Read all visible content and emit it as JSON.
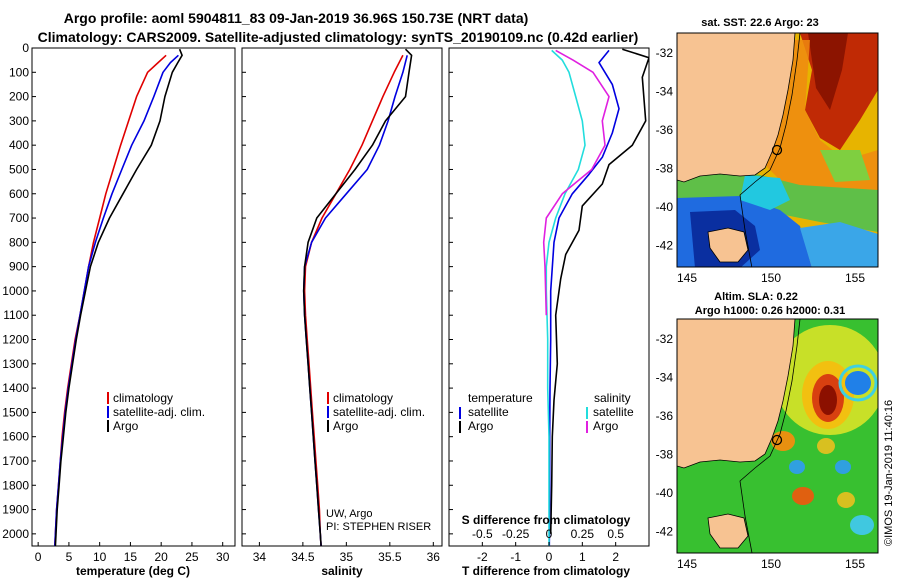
{
  "header": {
    "title_line1": "Argo profile: aoml 5904811_83 09-Jan-2019 36.96S 150.73E (NRT data)",
    "title_line2": "Climatology: CARS2009. Satellite-adjusted climatology: synTS_20190109.nc (0.42d earlier)"
  },
  "colors": {
    "climatology": "#e00000",
    "satellite": "#0000e0",
    "argo": "#000000",
    "sat_salinity": "#22dddd",
    "argo_salinity": "#e020e0"
  },
  "chart_data": [
    {
      "type": "line",
      "id": "temperature",
      "xlabel": "temperature (deg C)",
      "ylabel": "",
      "xlim": [
        -1,
        32
      ],
      "ylim": [
        2050,
        0
      ],
      "y_inverted": true,
      "xticks": [
        0,
        5,
        10,
        15,
        20,
        25,
        30
      ],
      "yticks": [
        0,
        100,
        200,
        300,
        400,
        500,
        600,
        700,
        800,
        900,
        1000,
        1100,
        1200,
        1300,
        1400,
        1500,
        1600,
        1700,
        1800,
        1900,
        2000
      ],
      "legend_position": "lower-center",
      "legend": [
        "climatology",
        "satellite-adj. clim.",
        "Argo"
      ],
      "series": [
        {
          "name": "climatology",
          "color": "#e00000",
          "points": [
            [
              20.8,
              30
            ],
            [
              19.5,
              60
            ],
            [
              17.8,
              100
            ],
            [
              16.0,
              200
            ],
            [
              14.7,
              300
            ],
            [
              13.4,
              400
            ],
            [
              12.2,
              500
            ],
            [
              11.0,
              600
            ],
            [
              10.0,
              700
            ],
            [
              9.0,
              800
            ],
            [
              8.2,
              900
            ],
            [
              7.5,
              1000
            ],
            [
              6.8,
              1100
            ],
            [
              6.0,
              1200
            ],
            [
              5.4,
              1300
            ],
            [
              4.8,
              1400
            ],
            [
              4.3,
              1500
            ],
            [
              3.9,
              1600
            ],
            [
              3.6,
              1700
            ],
            [
              3.3,
              1800
            ],
            [
              3.0,
              1900
            ],
            [
              2.8,
              2000
            ],
            [
              2.7,
              2050
            ]
          ]
        },
        {
          "name": "satellite-adj. clim.",
          "color": "#0000e0",
          "points": [
            [
              22.8,
              30
            ],
            [
              21.5,
              60
            ],
            [
              20.3,
              100
            ],
            [
              18.8,
              200
            ],
            [
              17.2,
              300
            ],
            [
              15.2,
              400
            ],
            [
              13.6,
              500
            ],
            [
              12.0,
              600
            ],
            [
              10.6,
              700
            ],
            [
              9.3,
              800
            ],
            [
              8.2,
              900
            ],
            [
              7.5,
              1000
            ],
            [
              6.8,
              1100
            ],
            [
              6.1,
              1200
            ],
            [
              5.5,
              1300
            ],
            [
              4.9,
              1400
            ],
            [
              4.4,
              1500
            ],
            [
              4.0,
              1600
            ],
            [
              3.6,
              1700
            ],
            [
              3.3,
              1800
            ],
            [
              3.0,
              1900
            ],
            [
              2.8,
              2000
            ],
            [
              2.7,
              2050
            ]
          ]
        },
        {
          "name": "Argo",
          "color": "#000000",
          "points": [
            [
              23.0,
              5
            ],
            [
              23.4,
              30
            ],
            [
              22.7,
              60
            ],
            [
              21.8,
              100
            ],
            [
              20.6,
              200
            ],
            [
              19.8,
              300
            ],
            [
              18.4,
              400
            ],
            [
              16.0,
              500
            ],
            [
              13.8,
              600
            ],
            [
              11.6,
              700
            ],
            [
              9.8,
              800
            ],
            [
              8.5,
              900
            ],
            [
              7.7,
              1000
            ],
            [
              6.9,
              1100
            ],
            [
              6.2,
              1200
            ],
            [
              5.6,
              1300
            ],
            [
              5.0,
              1400
            ],
            [
              4.5,
              1500
            ],
            [
              4.1,
              1600
            ],
            [
              3.7,
              1700
            ],
            [
              3.4,
              1800
            ],
            [
              3.1,
              1900
            ],
            [
              2.9,
              2000
            ],
            [
              2.8,
              2050
            ]
          ]
        }
      ]
    },
    {
      "type": "line",
      "id": "salinity",
      "xlabel": "salinity",
      "ylabel": "",
      "xlim": [
        33.8,
        36.1
      ],
      "ylim": [
        2050,
        0
      ],
      "y_inverted": true,
      "xticks": [
        34,
        34.5,
        35,
        35.5,
        36
      ],
      "xtick_labels": [
        "34",
        "34.5",
        "35",
        "35.5",
        "36"
      ],
      "legend_position": "lower-center",
      "legend": [
        "climatology",
        "satellite-adj. clim.",
        "Argo"
      ],
      "annotations": [
        "UW, Argo",
        "PI: STEPHEN RISER"
      ],
      "series": [
        {
          "name": "climatology",
          "color": "#e00000",
          "points": [
            [
              35.65,
              30
            ],
            [
              35.55,
              100
            ],
            [
              35.42,
              200
            ],
            [
              35.3,
              300
            ],
            [
              35.18,
              400
            ],
            [
              35.04,
              500
            ],
            [
              34.88,
              600
            ],
            [
              34.72,
              700
            ],
            [
              34.6,
              800
            ],
            [
              34.53,
              900
            ],
            [
              34.52,
              1000
            ],
            [
              34.53,
              1100
            ],
            [
              34.55,
              1200
            ],
            [
              34.57,
              1300
            ],
            [
              34.59,
              1400
            ],
            [
              34.61,
              1500
            ],
            [
              34.63,
              1600
            ],
            [
              34.65,
              1700
            ],
            [
              34.67,
              1800
            ],
            [
              34.69,
              1900
            ],
            [
              34.7,
              2000
            ],
            [
              34.71,
              2050
            ]
          ]
        },
        {
          "name": "satellite-adj. clim.",
          "color": "#0000e0",
          "points": [
            [
              35.7,
              30
            ],
            [
              35.65,
              100
            ],
            [
              35.56,
              200
            ],
            [
              35.48,
              300
            ],
            [
              35.38,
              400
            ],
            [
              35.24,
              500
            ],
            [
              35.0,
              600
            ],
            [
              34.76,
              700
            ],
            [
              34.6,
              800
            ],
            [
              34.52,
              900
            ],
            [
              34.51,
              1000
            ],
            [
              34.52,
              1100
            ],
            [
              34.54,
              1200
            ],
            [
              34.56,
              1300
            ],
            [
              34.58,
              1400
            ],
            [
              34.6,
              1500
            ],
            [
              34.62,
              1600
            ],
            [
              34.64,
              1700
            ],
            [
              34.66,
              1800
            ],
            [
              34.68,
              1900
            ],
            [
              34.7,
              2000
            ],
            [
              34.71,
              2050
            ]
          ]
        },
        {
          "name": "Argo",
          "color": "#000000",
          "points": [
            [
              35.68,
              5
            ],
            [
              35.75,
              30
            ],
            [
              35.72,
              100
            ],
            [
              35.68,
              200
            ],
            [
              35.45,
              300
            ],
            [
              35.3,
              400
            ],
            [
              35.1,
              500
            ],
            [
              34.88,
              600
            ],
            [
              34.66,
              700
            ],
            [
              34.56,
              800
            ],
            [
              34.52,
              900
            ],
            [
              34.51,
              1000
            ],
            [
              34.52,
              1100
            ],
            [
              34.54,
              1200
            ],
            [
              34.56,
              1300
            ],
            [
              34.58,
              1400
            ],
            [
              34.6,
              1500
            ],
            [
              34.62,
              1600
            ],
            [
              34.64,
              1700
            ],
            [
              34.66,
              1800
            ],
            [
              34.68,
              1900
            ],
            [
              34.7,
              2000
            ],
            [
              34.71,
              2050
            ]
          ]
        }
      ]
    },
    {
      "type": "line",
      "id": "differences",
      "xlabel": "T difference from climatology",
      "xlabel_top": "S difference from climatology",
      "ylabel": "",
      "xlim": [
        -3,
        3
      ],
      "ylim": [
        2050,
        0
      ],
      "y_inverted": true,
      "xticks": [
        -2,
        -1,
        0,
        1,
        2
      ],
      "s_xticks": [
        -0.5,
        -0.25,
        0,
        0.25,
        0.5
      ],
      "s_xtick_labels": [
        "-0.5",
        "-0.25",
        "0",
        "0.25",
        "0.5"
      ],
      "legend_position": "lower-center",
      "legend_temperature_title": "temperature",
      "legend_salinity_title": "salinity",
      "legend_temperature": [
        "satellite",
        "Argo"
      ],
      "legend_salinity": [
        "satellite",
        "Argo"
      ],
      "series": [
        {
          "name": "satellite",
          "quantity": "temperature",
          "color": "#0000e0",
          "points": [
            [
              1.8,
              10
            ],
            [
              1.5,
              60
            ],
            [
              1.9,
              150
            ],
            [
              2.1,
              250
            ],
            [
              1.9,
              350
            ],
            [
              1.6,
              450
            ],
            [
              1.2,
              520
            ],
            [
              0.7,
              600
            ],
            [
              0.3,
              700
            ],
            [
              0.15,
              800
            ],
            [
              0.05,
              1000
            ],
            [
              0.05,
              1200
            ],
            [
              0.03,
              1400
            ],
            [
              0.02,
              1600
            ],
            [
              0.02,
              1800
            ],
            [
              0.01,
              2050
            ]
          ]
        },
        {
          "name": "Argo",
          "quantity": "temperature",
          "color": "#000000",
          "points": [
            [
              2.2,
              5
            ],
            [
              3.0,
              40
            ],
            [
              2.8,
              120
            ],
            [
              2.9,
              300
            ],
            [
              2.5,
              400
            ],
            [
              1.8,
              480
            ],
            [
              1.6,
              560
            ],
            [
              1.0,
              650
            ],
            [
              0.9,
              750
            ],
            [
              0.5,
              850
            ],
            [
              0.35,
              950
            ],
            [
              0.2,
              1100
            ],
            [
              0.25,
              1300
            ],
            [
              0.15,
              1450
            ],
            [
              0.1,
              1600
            ],
            [
              0.08,
              1800
            ],
            [
              0.05,
              2000
            ]
          ]
        },
        {
          "name": "satellite",
          "quantity": "salinity",
          "color": "#22dddd",
          "points": [
            [
              0.02,
              10
            ],
            [
              0.1,
              50
            ],
            [
              0.15,
              100
            ],
            [
              0.2,
              200
            ],
            [
              0.25,
              300
            ],
            [
              0.27,
              400
            ],
            [
              0.22,
              500
            ],
            [
              0.12,
              600
            ],
            [
              0.05,
              700
            ],
            [
              0.0,
              800
            ],
            [
              -0.02,
              900
            ],
            [
              -0.02,
              1000
            ],
            [
              -0.01,
              1200
            ],
            [
              -0.01,
              1400
            ],
            [
              0.0,
              1600
            ],
            [
              0.0,
              1800
            ],
            [
              0.0,
              2050
            ]
          ]
        },
        {
          "name": "Argo",
          "quantity": "salinity",
          "color": "#e020e0",
          "points": [
            [
              0.05,
              10
            ],
            [
              0.18,
              50
            ],
            [
              0.33,
              100
            ],
            [
              0.45,
              200
            ],
            [
              0.4,
              300
            ],
            [
              0.42,
              400
            ],
            [
              0.32,
              500
            ],
            [
              0.1,
              600
            ],
            [
              -0.02,
              700
            ],
            [
              -0.04,
              800
            ],
            [
              -0.03,
              900
            ],
            [
              -0.02,
              1100
            ]
          ]
        }
      ]
    }
  ],
  "map_top": {
    "title": "sat. SST: 22.6 Argo: 23",
    "lat_ticks": [
      "-32",
      "-34",
      "-36",
      "-38",
      "-40",
      "-42"
    ],
    "lon_ticks": [
      "145",
      "150",
      "155"
    ],
    "marker_label": "Argo location"
  },
  "map_bottom": {
    "title_line1": "Altim. SLA: 0.22",
    "title_line2": "Argo h1000: 0.26 h2000: 0.31",
    "lat_ticks": [
      "-32",
      "-34",
      "-36",
      "-38",
      "-40",
      "-42"
    ],
    "lon_ticks": [
      "145",
      "150",
      "155"
    ]
  },
  "footer": {
    "credit": "©IMOS 19-Jan-2019 11:40:16"
  }
}
